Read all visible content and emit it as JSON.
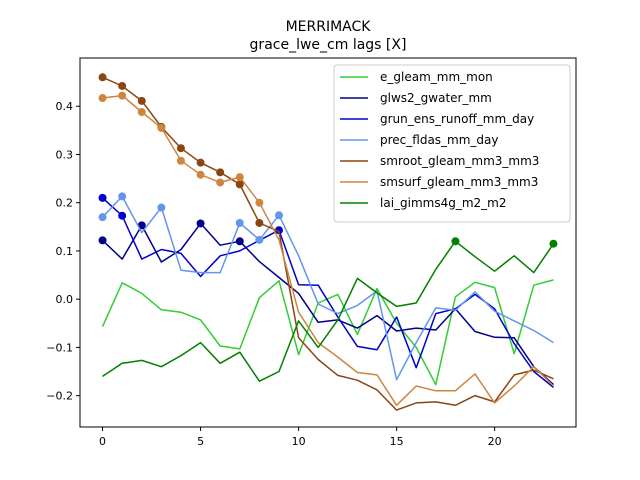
{
  "chart_data": {
    "type": "line",
    "title": "MERRIMACK",
    "subtitle": "grace_lwe_cm lags [X]",
    "xlabel": "",
    "ylabel": "",
    "xlim": [
      -1.15,
      24.15
    ],
    "ylim": [
      -0.265,
      0.5
    ],
    "xticks": [
      0,
      5,
      10,
      15,
      20
    ],
    "yticks": [
      -0.2,
      -0.1,
      0.0,
      0.1,
      0.2,
      0.3,
      0.4
    ],
    "ytick_labels": [
      "−0.2",
      "−0.1",
      "0.0",
      "0.1",
      "0.2",
      "0.3",
      "0.4"
    ],
    "grid": false,
    "legend_position": "top-right",
    "x": [
      0,
      1,
      2,
      3,
      4,
      5,
      6,
      7,
      8,
      9,
      10,
      11,
      12,
      13,
      14,
      15,
      16,
      17,
      18,
      19,
      20,
      21,
      22,
      23
    ],
    "series": [
      {
        "name": "e_gleam_mm_mon",
        "color": "#32cd32",
        "values": [
          -0.057,
          0.034,
          0.012,
          -0.022,
          -0.027,
          -0.043,
          -0.097,
          -0.103,
          0.003,
          0.038,
          -0.115,
          -0.008,
          0.01,
          -0.073,
          0.022,
          -0.05,
          -0.1,
          -0.177,
          0.005,
          0.035,
          0.024,
          -0.113,
          0.029,
          0.04
        ],
        "markers": []
      },
      {
        "name": "glws2_gwater_mm",
        "color": "#00008b",
        "values": [
          0.122,
          0.083,
          0.153,
          0.077,
          0.103,
          0.157,
          0.112,
          0.12,
          0.078,
          0.045,
          0.012,
          -0.048,
          -0.043,
          -0.06,
          -0.034,
          -0.066,
          -0.06,
          -0.064,
          -0.02,
          -0.067,
          -0.079,
          -0.08,
          -0.14,
          -0.177
        ],
        "markers": [
          0,
          2,
          5,
          7
        ]
      },
      {
        "name": "grun_ens_runoff_mm_day",
        "color": "#0000cd",
        "values": [
          0.21,
          0.173,
          0.083,
          0.103,
          0.095,
          0.047,
          0.09,
          0.1,
          0.122,
          0.143,
          0.03,
          0.029,
          -0.037,
          -0.098,
          -0.105,
          -0.037,
          -0.142,
          -0.03,
          -0.02,
          0.01,
          -0.02,
          -0.092,
          -0.15,
          -0.183
        ],
        "markers": [
          0,
          1,
          9
        ]
      },
      {
        "name": "prec_fldas_mm_day",
        "color": "#6495ed",
        "values": [
          0.17,
          0.213,
          0.138,
          0.19,
          0.06,
          0.055,
          0.055,
          0.158,
          0.123,
          0.174,
          0.09,
          -0.01,
          -0.03,
          -0.013,
          0.017,
          -0.167,
          -0.09,
          -0.018,
          -0.023,
          0.015,
          -0.025,
          -0.045,
          -0.065,
          -0.09
        ],
        "markers": [
          0,
          1,
          3,
          7,
          8,
          9
        ]
      },
      {
        "name": "smroot_gleam_mm3_mm3",
        "color": "#8b4513",
        "values": [
          0.46,
          0.442,
          0.411,
          0.357,
          0.313,
          0.283,
          0.263,
          0.238,
          0.158,
          0.14,
          -0.08,
          -0.125,
          -0.158,
          -0.168,
          -0.188,
          -0.23,
          -0.215,
          -0.213,
          -0.22,
          -0.2,
          -0.213,
          -0.157,
          -0.147,
          -0.165
        ],
        "markers": [
          0,
          1,
          2,
          3,
          4,
          5,
          6,
          7,
          8
        ]
      },
      {
        "name": "smsurf_gleam_mm3_mm3",
        "color": "#cd853f",
        "values": [
          0.417,
          0.422,
          0.388,
          0.355,
          0.287,
          0.258,
          0.242,
          0.253,
          0.2,
          0.123,
          -0.027,
          -0.09,
          -0.12,
          -0.152,
          -0.157,
          -0.22,
          -0.18,
          -0.19,
          -0.19,
          -0.155,
          -0.215,
          -0.18,
          -0.14,
          -0.18
        ],
        "markers": [
          0,
          1,
          2,
          3,
          4,
          5,
          6,
          7,
          8
        ]
      },
      {
        "name": "lai_gimms4g_m2_m2",
        "color": "#008000",
        "values": [
          -0.16,
          -0.133,
          -0.127,
          -0.14,
          -0.117,
          -0.09,
          -0.133,
          -0.11,
          -0.17,
          -0.15,
          -0.045,
          -0.1,
          -0.043,
          0.043,
          0.013,
          -0.015,
          -0.008,
          0.062,
          0.12,
          0.088,
          0.058,
          0.09,
          0.055,
          0.115
        ],
        "markers": [
          18,
          23
        ]
      }
    ]
  }
}
